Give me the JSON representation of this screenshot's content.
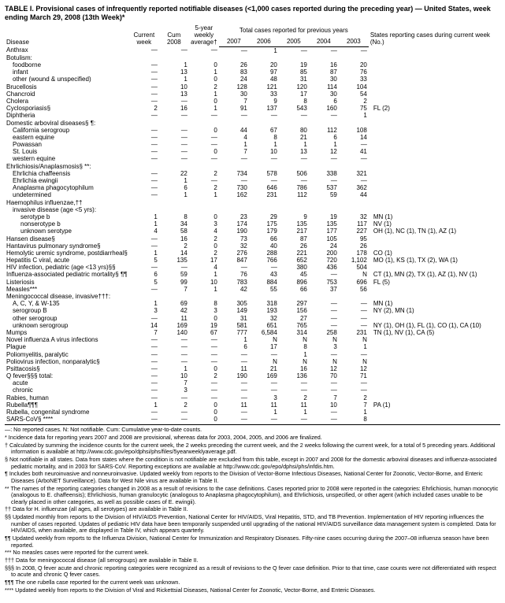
{
  "title": "TABLE I. Provisional cases of infrequently reported notifiable diseases (<1,000 cases reported during the preceding year) — United States, week ending March 29, 2008 (13th Week)*",
  "headers": {
    "disease": "Disease",
    "current_week": "Current week",
    "cum_2008": "Cum 2008",
    "five_year_avg": "5-year weekly average†",
    "prev_years_group": "Total cases reported for previous years",
    "y2007": "2007",
    "y2006": "2006",
    "y2005": "2005",
    "y2004": "2004",
    "y2003": "2003",
    "states_label": "States reporting cases during current week (No.)"
  },
  "rows": [
    {
      "d": "Anthrax",
      "i": 0,
      "c": [
        "—",
        "—",
        "—",
        "—",
        "1",
        "—",
        "—",
        "—",
        ""
      ]
    },
    {
      "d": "Botulism:",
      "i": 0,
      "c": [
        "",
        "",
        "",
        "",
        "",
        "",
        "",
        "",
        ""
      ]
    },
    {
      "d": "foodborne",
      "i": 1,
      "c": [
        "—",
        "1",
        "0",
        "26",
        "20",
        "19",
        "16",
        "20",
        ""
      ]
    },
    {
      "d": "infant",
      "i": 1,
      "c": [
        "—",
        "13",
        "1",
        "83",
        "97",
        "85",
        "87",
        "76",
        ""
      ]
    },
    {
      "d": "other (wound & unspecified)",
      "i": 1,
      "c": [
        "—",
        "1",
        "0",
        "24",
        "48",
        "31",
        "30",
        "33",
        ""
      ]
    },
    {
      "d": "Brucellosis",
      "i": 0,
      "c": [
        "—",
        "10",
        "2",
        "128",
        "121",
        "120",
        "114",
        "104",
        ""
      ]
    },
    {
      "d": "Chancroid",
      "i": 0,
      "c": [
        "—",
        "13",
        "1",
        "30",
        "33",
        "17",
        "30",
        "54",
        ""
      ]
    },
    {
      "d": "Cholera",
      "i": 0,
      "c": [
        "—",
        "—",
        "0",
        "7",
        "9",
        "8",
        "6",
        "2",
        ""
      ]
    },
    {
      "d": "Cyclosporiasis§",
      "i": 0,
      "c": [
        "2",
        "16",
        "1",
        "91",
        "137",
        "543",
        "160",
        "75",
        "FL (2)"
      ]
    },
    {
      "d": "Diphtheria",
      "i": 0,
      "c": [
        "—",
        "—",
        "—",
        "—",
        "—",
        "—",
        "—",
        "1",
        ""
      ]
    },
    {
      "d": "Domestic arboviral diseases§ ¶:",
      "i": 0,
      "c": [
        "",
        "",
        "",
        "",
        "",
        "",
        "",
        "",
        ""
      ]
    },
    {
      "d": "California serogroup",
      "i": 1,
      "c": [
        "—",
        "—",
        "0",
        "44",
        "67",
        "80",
        "112",
        "108",
        ""
      ]
    },
    {
      "d": "eastern equine",
      "i": 1,
      "c": [
        "—",
        "—",
        "—",
        "4",
        "8",
        "21",
        "6",
        "14",
        ""
      ]
    },
    {
      "d": "Powassan",
      "i": 1,
      "c": [
        "—",
        "—",
        "—",
        "1",
        "1",
        "1",
        "1",
        "—",
        ""
      ]
    },
    {
      "d": "St. Louis",
      "i": 1,
      "c": [
        "—",
        "—",
        "0",
        "7",
        "10",
        "13",
        "12",
        "41",
        ""
      ]
    },
    {
      "d": "western equine",
      "i": 1,
      "c": [
        "—",
        "—",
        "—",
        "—",
        "—",
        "—",
        "—",
        "—",
        ""
      ]
    },
    {
      "d": "Ehrlichiosis/Anaplasmosis§ **:",
      "i": 0,
      "c": [
        "",
        "",
        "",
        "",
        "",
        "",
        "",
        "",
        ""
      ]
    },
    {
      "d": "Ehrlichia chaffeensis",
      "i": 1,
      "c": [
        "—",
        "22",
        "2",
        "734",
        "578",
        "506",
        "338",
        "321",
        ""
      ]
    },
    {
      "d": "Ehrlichia ewingii",
      "i": 1,
      "c": [
        "—",
        "1",
        "—",
        "—",
        "—",
        "—",
        "—",
        "—",
        ""
      ]
    },
    {
      "d": "Anaplasma phagocytophilum",
      "i": 1,
      "c": [
        "—",
        "6",
        "2",
        "730",
        "646",
        "786",
        "537",
        "362",
        ""
      ]
    },
    {
      "d": "undetermined",
      "i": 1,
      "c": [
        "—",
        "1",
        "1",
        "162",
        "231",
        "112",
        "59",
        "44",
        ""
      ]
    },
    {
      "d": "Haemophilus influenzae,††",
      "i": 0,
      "c": [
        "",
        "",
        "",
        "",
        "",
        "",
        "",
        "",
        ""
      ]
    },
    {
      "d": "invasive disease (age <5 yrs):",
      "i": 1,
      "c": [
        "",
        "",
        "",
        "",
        "",
        "",
        "",
        "",
        ""
      ]
    },
    {
      "d": "serotype b",
      "i": 2,
      "c": [
        "1",
        "8",
        "0",
        "23",
        "29",
        "9",
        "19",
        "32",
        "MN (1)"
      ]
    },
    {
      "d": "nonserotype b",
      "i": 2,
      "c": [
        "1",
        "34",
        "3",
        "174",
        "175",
        "135",
        "135",
        "117",
        "NV (1)"
      ]
    },
    {
      "d": "unknown serotype",
      "i": 2,
      "c": [
        "4",
        "58",
        "4",
        "190",
        "179",
        "217",
        "177",
        "227",
        "OH (1), NC (1), TN (1), AZ (1)"
      ]
    },
    {
      "d": "Hansen disease§",
      "i": 0,
      "c": [
        "—",
        "16",
        "2",
        "73",
        "66",
        "87",
        "105",
        "95",
        ""
      ]
    },
    {
      "d": "Hantavirus pulmonary syndrome§",
      "i": 0,
      "c": [
        "—",
        "2",
        "0",
        "32",
        "40",
        "26",
        "24",
        "26",
        ""
      ]
    },
    {
      "d": "Hemolytic uremic syndrome, postdiarrheal§",
      "i": 0,
      "c": [
        "1",
        "14",
        "2",
        "276",
        "288",
        "221",
        "200",
        "178",
        "CO (1)"
      ]
    },
    {
      "d": "Hepatitis C viral, acute",
      "i": 0,
      "c": [
        "5",
        "135",
        "17",
        "847",
        "766",
        "652",
        "720",
        "1,102",
        "MO (1), KS (1), TX (2), WA (1)"
      ]
    },
    {
      "d": "HIV infection, pediatric (age <13 yrs)§§",
      "i": 0,
      "c": [
        "—",
        "—",
        "4",
        "—",
        "—",
        "380",
        "436",
        "504",
        ""
      ]
    },
    {
      "d": "Influenza-associated pediatric mortality§ ¶¶",
      "i": 0,
      "c": [
        "6",
        "59",
        "1",
        "76",
        "43",
        "45",
        "—",
        "N",
        "CT (1), MN (2), TX (1), AZ (1), NV (1)"
      ]
    },
    {
      "d": "Listeriosis",
      "i": 0,
      "c": [
        "5",
        "99",
        "10",
        "783",
        "884",
        "896",
        "753",
        "696",
        "FL (5)"
      ]
    },
    {
      "d": "Measles***",
      "i": 0,
      "c": [
        "—",
        "7",
        "1",
        "42",
        "55",
        "66",
        "37",
        "56",
        ""
      ]
    },
    {
      "d": "Meningococcal disease, invasive†††:",
      "i": 0,
      "c": [
        "",
        "",
        "",
        "",
        "",
        "",
        "",
        "",
        ""
      ]
    },
    {
      "d": "A, C, Y, & W-135",
      "i": 1,
      "c": [
        "1",
        "69",
        "8",
        "305",
        "318",
        "297",
        "—",
        "—",
        "MN (1)"
      ]
    },
    {
      "d": "serogroup B",
      "i": 1,
      "c": [
        "3",
        "42",
        "3",
        "149",
        "193",
        "156",
        "—",
        "—",
        "NY (2), MN (1)"
      ]
    },
    {
      "d": "other serogroup",
      "i": 1,
      "c": [
        "—",
        "11",
        "0",
        "31",
        "32",
        "27",
        "—",
        "—",
        ""
      ]
    },
    {
      "d": "unknown serogroup",
      "i": 1,
      "c": [
        "14",
        "169",
        "19",
        "581",
        "651",
        "765",
        "—",
        "—",
        "NY (1), OH (1), FL (1), CO (1), CA (10)"
      ]
    },
    {
      "d": "Mumps",
      "i": 0,
      "c": [
        "7",
        "140",
        "67",
        "777",
        "6,584",
        "314",
        "258",
        "231",
        "TN (1), NV (1), CA (5)"
      ]
    },
    {
      "d": "Novel influenza A virus infections",
      "i": 0,
      "c": [
        "—",
        "—",
        "—",
        "1",
        "N",
        "N",
        "N",
        "N",
        ""
      ]
    },
    {
      "d": "Plague",
      "i": 0,
      "c": [
        "—",
        "—",
        "—",
        "6",
        "17",
        "8",
        "3",
        "1",
        ""
      ]
    },
    {
      "d": "Poliomyelitis, paralytic",
      "i": 0,
      "c": [
        "—",
        "—",
        "—",
        "—",
        "—",
        "1",
        "—",
        "—",
        ""
      ]
    },
    {
      "d": "Poliovirus infection, nonparalytic§",
      "i": 0,
      "c": [
        "—",
        "—",
        "—",
        "—",
        "N",
        "N",
        "N",
        "N",
        ""
      ]
    },
    {
      "d": "Psittacosis§",
      "i": 0,
      "c": [
        "—",
        "1",
        "0",
        "11",
        "21",
        "16",
        "12",
        "12",
        ""
      ]
    },
    {
      "d": "Q fever§§§ total:",
      "i": 0,
      "c": [
        "—",
        "10",
        "2",
        "190",
        "169",
        "136",
        "70",
        "71",
        ""
      ]
    },
    {
      "d": "acute",
      "i": 1,
      "c": [
        "—",
        "7",
        "—",
        "—",
        "—",
        "—",
        "—",
        "—",
        ""
      ]
    },
    {
      "d": "chronic",
      "i": 1,
      "c": [
        "—",
        "3",
        "—",
        "—",
        "—",
        "—",
        "—",
        "—",
        ""
      ]
    },
    {
      "d": "Rabies, human",
      "i": 0,
      "c": [
        "—",
        "—",
        "—",
        "—",
        "3",
        "2",
        "7",
        "2",
        ""
      ]
    },
    {
      "d": "Rubella¶¶¶",
      "i": 0,
      "c": [
        "1",
        "2",
        "0",
        "11",
        "11",
        "11",
        "10",
        "7",
        "PA (1)"
      ]
    },
    {
      "d": "Rubella, congenital syndrome",
      "i": 0,
      "c": [
        "—",
        "—",
        "0",
        "—",
        "1",
        "1",
        "—",
        "1",
        ""
      ]
    },
    {
      "d": "SARS-CoV§ ****",
      "i": 0,
      "c": [
        "—",
        "—",
        "0",
        "—",
        "—",
        "—",
        "—",
        "8",
        ""
      ]
    }
  ],
  "footnotes": [
    "—: No reported cases.   N: Not notifiable.   Cum: Cumulative year-to-date counts.",
    "* Incidence data for reporting years 2007 and 2008 are provisional, whereas data for 2003, 2004, 2005, and 2006 are finalized.",
    "† Calculated by summing the incidence counts for the current week, the 2 weeks preceding the current week, and the 2 weeks following the current week, for a total of 5 preceding years. Additional information is available at http://www.cdc.gov/epo/dphsi/phs/files/5yearweeklyaverage.pdf.",
    "§ Not notifiable in all states. Data from states where the condition is not notifiable are excluded from this table, except in 2007 and 2008 for the domestic arboviral diseases and influenza-associated pediatric mortality, and in 2003 for SARS-CoV. Reporting exceptions are available at http://www.cdc.gov/epo/dphsi/phs/infdis.htm.",
    "¶ Includes both neuroinvasive and nonneuroinvasive. Updated weekly from reports to the Division of Vector-Borne Infectious Diseases, National Center for Zoonotic, Vector-Borne, and Enteric Diseases (ArboNET Surveillance). Data for West Nile virus are available in Table II.",
    "** The names of the reporting categories changed in 2008 as a result of revisions to the case definitions. Cases reported prior to 2008 were reported in the categories: Ehrlichiosis, human monocytic (analogous to E. chaffeensis); Ehrlichiosis, human granulocytic (analogous to Anaplasma phagocytophilum), and Ehrlichiosis, unspecified, or other agent (which included cases unable to be clearly placed in other categories, as well as possible cases of E. ewingii).",
    "†† Data for H. influenzae (all ages, all serotypes) are available in Table II.",
    "§§ Updated monthly from reports to the Division of HIV/AIDS Prevention, National Center for HIV/AIDS, Viral Hepatitis, STD, and TB Prevention. Implementation of HIV reporting influences the number of cases reported. Updates of pediatric HIV data have been temporarily suspended until upgrading of the national HIV/AIDS surveillance data management system is completed. Data for HIV/AIDS, when available, are displayed in Table IV, which appears quarterly.",
    "¶¶ Updated weekly from reports to the Influenza Division, National Center for Immunization and Respiratory Diseases. Fifty-nine cases occurring during the 2007–08 influenza season have been reported.",
    "*** No measles cases were reported for the current week.",
    "††† Data for meningococcal disease (all serogroups) are available in Table II.",
    "§§§ In 2008, Q fever acute and chronic reporting categories were recognized as a result of revisions to the Q fever case definition. Prior to that time, case counts were not differentiated with respect to acute and chronic Q fever cases.",
    "¶¶¶ The one rubella case reported for the current week was unknown.",
    "**** Updated weekly from reports to the Division of Viral and Rickettsial Diseases, National Center for Zoonotic, Vector-Borne, and Enteric Diseases."
  ]
}
